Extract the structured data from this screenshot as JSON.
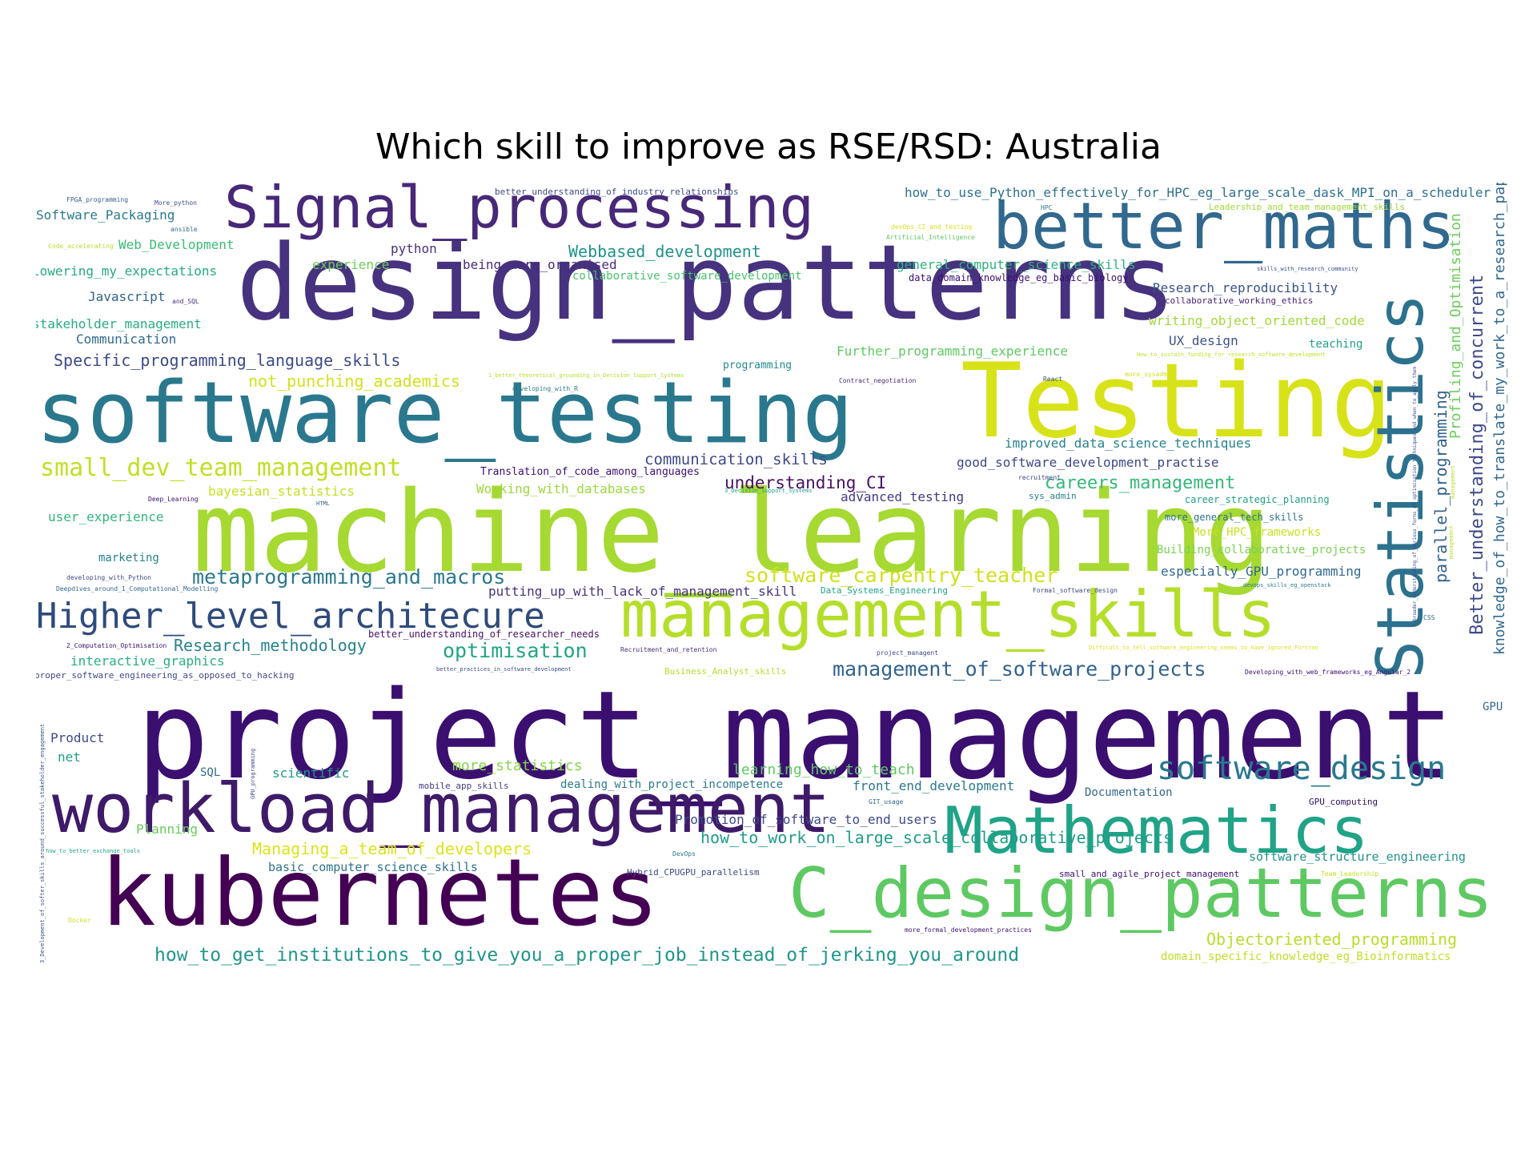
{
  "title": "Which skill to improve as RSE/RSD: Australia",
  "words": [
    {
      "t": "project_management",
      "c": "#3b0f70"
    },
    {
      "t": "machine_learning",
      "c": "#a6d932"
    },
    {
      "t": "design_patterns",
      "c": "#46327e"
    },
    {
      "t": "software_testing",
      "c": "#2a788e"
    },
    {
      "t": "Testing",
      "c": "#d8e219"
    },
    {
      "t": "kubernetes",
      "c": "#440154"
    },
    {
      "t": "workload_management",
      "c": "#3e1a68"
    },
    {
      "t": "C_design_patterns",
      "c": "#5ec962"
    },
    {
      "t": "management_skills",
      "c": "#b5de2b"
    },
    {
      "t": "Signal_processing",
      "c": "#482878"
    },
    {
      "t": "better_maths",
      "c": "#31688e"
    },
    {
      "t": "Mathematics",
      "c": "#20a386"
    },
    {
      "t": "Statistics",
      "c": "#2c728e"
    },
    {
      "t": "Higher_level_architecure",
      "c": "#2f4b7c"
    },
    {
      "t": "software_design",
      "c": "#2a788e"
    },
    {
      "t": "small_dev_team_management",
      "c": "#c2df23"
    },
    {
      "t": "how_to_get_institutions_to_give_you_a_proper_job_instead_of_jerking_you_around",
      "c": "#1f968b"
    },
    {
      "t": "Objectoriented_programming",
      "c": "#b8de29"
    },
    {
      "t": "Specific_programming_language_skills",
      "c": "#3e4a89"
    },
    {
      "t": "management_of_software_projects",
      "c": "#33638d"
    },
    {
      "t": "metaprogramming_and_macros",
      "c": "#2a788e"
    },
    {
      "t": "software_carpentry_teacher",
      "c": "#d0e11c"
    },
    {
      "t": "optimisation",
      "c": "#21a585"
    },
    {
      "t": "understanding_CI",
      "c": "#471164"
    },
    {
      "t": "communication_skills",
      "c": "#3f4889"
    },
    {
      "t": "careers_management",
      "c": "#35b779"
    },
    {
      "t": "how_to_work_on_large_scale_collaborative_projects",
      "c": "#1e9b8a"
    },
    {
      "t": "Managing_a_team_of_developers",
      "c": "#dde318"
    },
    {
      "t": "Research_methodology",
      "c": "#26828e"
    },
    {
      "t": "Webbased_development",
      "c": "#20928c"
    },
    {
      "t": "Research_reproducibility",
      "c": "#3b528b"
    },
    {
      "t": "how_to_use_Python_effectively_for_HPC_eg_large_scale_dask_MPI_on_a_scheduler",
      "c": "#2d708e"
    },
    {
      "t": "knowledge_of_how_to_translate_my_work_to_a_research_paper",
      "c": "#31688e"
    },
    {
      "t": "Better_understanding_of_concurrent",
      "c": "#3e4a89"
    },
    {
      "t": "parallel_programming",
      "c": "#33638d"
    },
    {
      "t": "Profiling_and_Optimisation",
      "c": "#6ccd5a"
    },
    {
      "t": "Software_Packaging",
      "c": "#2a788e"
    },
    {
      "t": "Web_Development",
      "c": "#3aba76"
    },
    {
      "t": "lowering_my_expectations",
      "c": "#25ab82"
    },
    {
      "t": "Javascript",
      "c": "#33638d"
    },
    {
      "t": "stakeholder_management",
      "c": "#27ad81"
    },
    {
      "t": "Communication",
      "c": "#31688e"
    },
    {
      "t": "not_punching_academics",
      "c": "#d2e21b"
    },
    {
      "t": "python",
      "c": "#46307e"
    },
    {
      "t": "experience",
      "c": "#6ece58"
    },
    {
      "t": "being_more_organised",
      "c": "#472d7b"
    },
    {
      "t": "collaborative_software_development",
      "c": "#4ac16d"
    },
    {
      "t": "general_computer_science_skills",
      "c": "#2db27d"
    },
    {
      "t": "data_domain_knowledge_eg_basic_biology",
      "c": "#3b0f70"
    },
    {
      "t": "writing_object_oriented_code",
      "c": "#a2da37"
    },
    {
      "t": "UX_design",
      "c": "#3b528b"
    },
    {
      "t": "teaching",
      "c": "#1fa088"
    },
    {
      "t": "Further_programming_experience",
      "c": "#5ec962"
    },
    {
      "t": "programming",
      "c": "#23898e"
    },
    {
      "t": "improved_data_science_techniques",
      "c": "#26828e"
    },
    {
      "t": "good_software_development_practise",
      "c": "#3e4989"
    },
    {
      "t": "Translation_of_code_among_languages",
      "c": "#3b0f70"
    },
    {
      "t": "bayesian_statistics",
      "c": "#c5e021"
    },
    {
      "t": "Working_with_databases",
      "c": "#9bd93c"
    },
    {
      "t": "advanced_testing",
      "c": "#443983"
    },
    {
      "t": "career_strategic_planning",
      "c": "#1f9e89"
    },
    {
      "t": "more_general_tech_skills",
      "c": "#2c728e"
    },
    {
      "t": "More_HPC_frameworks",
      "c": "#cae11f"
    },
    {
      "t": "Building_collaborative_projects",
      "c": "#7ad151"
    },
    {
      "t": "especially_GPU_programming",
      "c": "#31688e"
    },
    {
      "t": "user_experience",
      "c": "#31b57b"
    },
    {
      "t": "marketing",
      "c": "#26828e"
    },
    {
      "t": "putting_up_with_lack_of_management_skill",
      "c": "#46337e"
    },
    {
      "t": "better_understanding_of_researcher_needs",
      "c": "#471164"
    },
    {
      "t": "interactive_graphics",
      "c": "#29af7f"
    },
    {
      "t": "proper_software_engineering_as_opposed_to_hacking",
      "c": "#3e4a89"
    },
    {
      "t": "Business_Analyst_skills",
      "c": "#b5de2b"
    },
    {
      "t": "more_statistics",
      "c": "#86d549"
    },
    {
      "t": "learning_how_to_teach",
      "c": "#5ec962"
    },
    {
      "t": "dealing_with_project_incompetence",
      "c": "#2a788e"
    },
    {
      "t": "front_end_development",
      "c": "#2a788e"
    },
    {
      "t": "Documentation",
      "c": "#31688e"
    },
    {
      "t": "GPU_computing",
      "c": "#2d1160"
    },
    {
      "t": "Product",
      "c": "#3e4a89"
    },
    {
      "t": "net",
      "c": "#1f9e89"
    },
    {
      "t": "SQL",
      "c": "#31688e"
    },
    {
      "t": "scientific",
      "c": "#1f968b"
    },
    {
      "t": "mobile_app_skills",
      "c": "#443a83"
    },
    {
      "t": "Promotion_of_software_to_end_users",
      "c": "#3e4a89"
    },
    {
      "t": "Planning",
      "c": "#66cb5d"
    },
    {
      "t": "basic_computer_science_skills",
      "c": "#2c728e"
    },
    {
      "t": "Hybrid_CPUGPU_parallelism",
      "c": "#414487"
    },
    {
      "t": "software_structure_engineering",
      "c": "#21918c"
    },
    {
      "t": "small_and_agile_project_management",
      "c": "#3b0f70"
    },
    {
      "t": "domain_specific_knowledge_eg_Bioinformatics",
      "c": "#c0df25"
    },
    {
      "t": "GPU",
      "c": "#31688e"
    },
    {
      "t": "better_understanding_of_industry_relationships",
      "c": "#3e4a89"
    },
    {
      "t": "Leadership_and_team_management_skills",
      "c": "#a0da39"
    },
    {
      "t": "collaborative_working_ethics",
      "c": "#482475"
    },
    {
      "t": "FPGA_programming",
      "c": "#35608d"
    },
    {
      "t": "More_python",
      "c": "#3b528b"
    },
    {
      "t": "ansible",
      "c": "#31688e"
    },
    {
      "t": "Code_accelerating",
      "c": "#b8de29"
    },
    {
      "t": "and_SQL",
      "c": "#46307e"
    },
    {
      "t": "HPC",
      "c": "#2a788e"
    },
    {
      "t": "devOps_CI_and_testing",
      "c": "#d8e219"
    },
    {
      "t": "Artificial_Intelligence",
      "c": "#5ec962"
    },
    {
      "t": "skills_with_research_community",
      "c": "#3e4a89"
    },
    {
      "t": "How_to_sustain_funding_for_research_software_development",
      "c": "#c2df23"
    },
    {
      "t": "1_better_theoretical_grounding_in_Decision_Support_Systems",
      "c": "#b5de2b"
    },
    {
      "t": "developing_with_R",
      "c": "#2a788e"
    },
    {
      "t": "Contract_negotiation",
      "c": "#482878"
    },
    {
      "t": "React",
      "c": "#3b528b"
    },
    {
      "t": "more_sysadmin",
      "c": "#d0e11c"
    },
    {
      "t": "recruitment",
      "c": "#3e4a89"
    },
    {
      "t": "sys_admin",
      "c": "#26828e"
    },
    {
      "t": "Deep_Learning",
      "c": "#3b0f70"
    },
    {
      "t": "HTML",
      "c": "#35608d"
    },
    {
      "t": "3_Decision_Support_Systems",
      "c": "#20a386"
    },
    {
      "t": "developing_with_Python",
      "c": "#3e4a89"
    },
    {
      "t": "Deepdives_around_1_Computational_Modelling",
      "c": "#31688e"
    },
    {
      "t": "Data_Systems_Engineering",
      "c": "#20a386"
    },
    {
      "t": "Formal_software_design",
      "c": "#3e4a89"
    },
    {
      "t": "devops_skills_eg_openstack",
      "c": "#2a788e"
    },
    {
      "t": "2_Computation_Optimisation",
      "c": "#3b0f70"
    },
    {
      "t": "Recruitment_and_retention",
      "c": "#46307e"
    },
    {
      "t": "project_managent",
      "c": "#3e4a89"
    },
    {
      "t": "Difficult_to_tell_software_engineering_seems_to_have_ignored_Fortran",
      "c": "#d8e219"
    },
    {
      "t": "better_practices_in_software_development",
      "c": "#3e4a89"
    },
    {
      "t": "Developing_with_web_frameworks_eg_Angular_2",
      "c": "#3b0f70"
    },
    {
      "t": "CSS",
      "c": "#35608d"
    },
    {
      "t": "2_broader_understanding_of_various_forms_of_optimisation_techniques_and_when_to_apply_them",
      "c": "#3e4a89"
    },
    {
      "t": "management",
      "c": "#b5de2b"
    },
    {
      "t": "GIT_usage",
      "c": "#31688e"
    },
    {
      "t": "DevOps",
      "c": "#2a788e"
    },
    {
      "t": "Team_Leadership",
      "c": "#c2df23"
    },
    {
      "t": "more_formal_development_practices",
      "c": "#3b0f70"
    },
    {
      "t": "how_to_better_exchange_tools",
      "c": "#20a386"
    },
    {
      "t": "Docker",
      "c": "#d0e11c"
    },
    {
      "t": "GPU_programming",
      "c": "#3e4a89"
    },
    {
      "t": "3_Development_of_softer_skills_around_successful_stakeholder_engagement",
      "c": "#3b528b"
    }
  ]
}
